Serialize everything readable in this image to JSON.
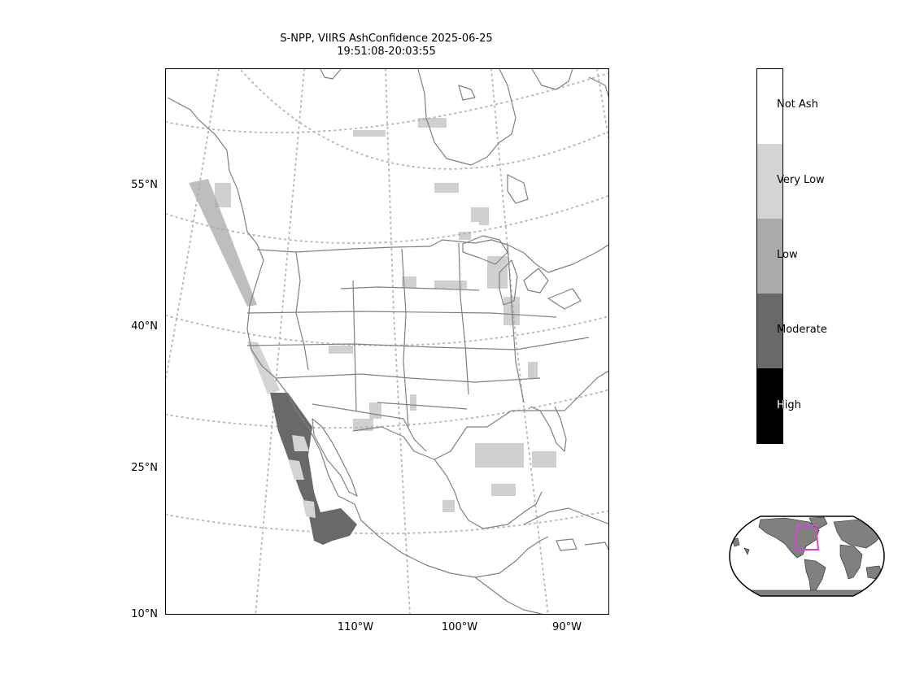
{
  "title": {
    "line1": "S-NPP, VIIRS AshConfidence 2025-06-25",
    "line2": "19:51:08-20:03:55"
  },
  "map": {
    "lat_labels": [
      "55°N",
      "40°N",
      "25°N",
      "10°N"
    ],
    "lon_labels": [
      "110°W",
      "100°W",
      "90°W"
    ],
    "grid_color": "#bbbbbb",
    "border_color": "#808080"
  },
  "colorbar": {
    "categories": [
      {
        "label": "Not Ash",
        "color": "#ffffff"
      },
      {
        "label": "Very Low",
        "color": "#d4d4d4"
      },
      {
        "label": "Low",
        "color": "#aaaaaa"
      },
      {
        "label": "Moderate",
        "color": "#696969"
      },
      {
        "label": "High",
        "color": "#000000"
      }
    ]
  },
  "inset": {
    "land_color": "#808080",
    "box_color": "#dd44dd"
  }
}
